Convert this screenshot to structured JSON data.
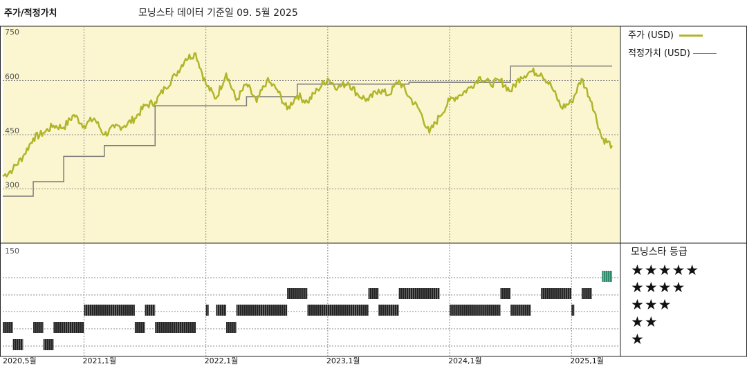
{
  "header": {
    "title": "주가/적정가치",
    "subtitle": "모닝스타 데이터 기준일 09. 5월 2025"
  },
  "legend": {
    "price_label": "주가 (USD)",
    "fair_label": "적정가치 (USD)"
  },
  "rating_panel": {
    "title": "모닝스타 등급",
    "stars": [
      "★★★★★",
      "★★★★",
      "★★★",
      "★★",
      "★"
    ]
  },
  "colors": {
    "price_line": "#b0b52a",
    "fair_line": "#7a7a7a",
    "plot_bg": "#fbf6cf",
    "rating_bar": "#222222",
    "rating_bar_5": "#2f8a6a"
  },
  "chart_data": {
    "type": "line",
    "x_start": "2020-05",
    "x_end": "2025-05",
    "x_ticks": [
      {
        "label": "2020,5월",
        "date": "2020-05"
      },
      {
        "label": "2021,1월",
        "date": "2021-01"
      },
      {
        "label": "2022,1월",
        "date": "2022-01"
      },
      {
        "label": "2023,1월",
        "date": "2023-01"
      },
      {
        "label": "2024,1월",
        "date": "2024-01"
      },
      {
        "label": "2025,1월",
        "date": "2025-01"
      }
    ],
    "y_ticks": [
      "750",
      "600",
      "450",
      "300",
      "150"
    ],
    "ylim": [
      150,
      750
    ],
    "grid": true,
    "series": [
      {
        "name": "주가 (USD)",
        "points": [
          [
            "2020-05",
            335
          ],
          [
            "2020-06",
            355
          ],
          [
            "2020-07",
            390
          ],
          [
            "2020-08",
            440
          ],
          [
            "2020-09",
            455
          ],
          [
            "2020-10",
            475
          ],
          [
            "2020-11",
            470
          ],
          [
            "2020-12",
            505
          ],
          [
            "2021-01",
            475
          ],
          [
            "2021-02",
            495
          ],
          [
            "2021-03",
            450
          ],
          [
            "2021-04",
            470
          ],
          [
            "2021-05",
            475
          ],
          [
            "2021-06",
            495
          ],
          [
            "2021-07",
            530
          ],
          [
            "2021-08",
            540
          ],
          [
            "2021-09",
            580
          ],
          [
            "2021-10",
            615
          ],
          [
            "2021-11",
            660
          ],
          [
            "2021-12",
            675
          ],
          [
            "2022-01",
            590
          ],
          [
            "2022-02",
            550
          ],
          [
            "2022-03",
            620
          ],
          [
            "2022-04",
            545
          ],
          [
            "2022-05",
            590
          ],
          [
            "2022-06",
            540
          ],
          [
            "2022-07",
            600
          ],
          [
            "2022-08",
            575
          ],
          [
            "2022-09",
            520
          ],
          [
            "2022-10",
            560
          ],
          [
            "2022-11",
            540
          ],
          [
            "2022-12",
            575
          ],
          [
            "2023-01",
            605
          ],
          [
            "2023-02",
            580
          ],
          [
            "2023-03",
            595
          ],
          [
            "2023-04",
            560
          ],
          [
            "2023-05",
            545
          ],
          [
            "2023-06",
            575
          ],
          [
            "2023-07",
            560
          ],
          [
            "2023-08",
            600
          ],
          [
            "2023-09",
            555
          ],
          [
            "2023-10",
            520
          ],
          [
            "2023-11",
            455
          ],
          [
            "2023-12",
            500
          ],
          [
            "2024-01",
            545
          ],
          [
            "2024-02",
            560
          ],
          [
            "2024-03",
            580
          ],
          [
            "2024-04",
            610
          ],
          [
            "2024-05",
            590
          ],
          [
            "2024-06",
            600
          ],
          [
            "2024-07",
            570
          ],
          [
            "2024-08",
            610
          ],
          [
            "2024-09",
            625
          ],
          [
            "2024-10",
            620
          ],
          [
            "2024-11",
            585
          ],
          [
            "2024-12",
            525
          ],
          [
            "2025-01",
            540
          ],
          [
            "2025-02",
            605
          ],
          [
            "2025-03",
            540
          ],
          [
            "2025-04",
            440
          ],
          [
            "2025-05",
            420
          ]
        ]
      },
      {
        "name": "적정가치 (USD)",
        "steps": [
          [
            "2020-05",
            280
          ],
          [
            "2020-08",
            320
          ],
          [
            "2020-11",
            390
          ],
          [
            "2021-03",
            420
          ],
          [
            "2021-08",
            530
          ],
          [
            "2021-12",
            530
          ],
          [
            "2022-05",
            555
          ],
          [
            "2022-10",
            590
          ],
          [
            "2023-09",
            595
          ],
          [
            "2024-06",
            595
          ],
          [
            "2024-07",
            640
          ],
          [
            "2025-05",
            640
          ]
        ]
      }
    ],
    "star_rating": {
      "levels": [
        5,
        4,
        3,
        2,
        1
      ],
      "periods": [
        {
          "stars": 2,
          "from": "2020-05",
          "to": "2020-06"
        },
        {
          "stars": 1,
          "from": "2020-06",
          "to": "2020-07"
        },
        {
          "stars": 2,
          "from": "2020-08",
          "to": "2020-09"
        },
        {
          "stars": 1,
          "from": "2020-09",
          "to": "2020-10"
        },
        {
          "stars": 2,
          "from": "2020-10",
          "to": "2021-01"
        },
        {
          "stars": 3,
          "from": "2021-01",
          "to": "2021-06"
        },
        {
          "stars": 2,
          "from": "2021-06",
          "to": "2021-07"
        },
        {
          "stars": 3,
          "from": "2021-07",
          "to": "2021-08"
        },
        {
          "stars": 2,
          "from": "2021-08",
          "to": "2021-12"
        },
        {
          "stars": 3,
          "from": "2022-01",
          "to": "2022-01"
        },
        {
          "stars": 3,
          "from": "2022-02",
          "to": "2022-03"
        },
        {
          "stars": 2,
          "from": "2022-03",
          "to": "2022-04"
        },
        {
          "stars": 3,
          "from": "2022-04",
          "to": "2022-09"
        },
        {
          "stars": 4,
          "from": "2022-09",
          "to": "2022-11"
        },
        {
          "stars": 3,
          "from": "2022-11",
          "to": "2023-05"
        },
        {
          "stars": 4,
          "from": "2023-05",
          "to": "2023-06"
        },
        {
          "stars": 3,
          "from": "2023-06",
          "to": "2023-08"
        },
        {
          "stars": 4,
          "from": "2023-08",
          "to": "2023-12"
        },
        {
          "stars": 3,
          "from": "2024-01",
          "to": "2024-06"
        },
        {
          "stars": 4,
          "from": "2024-06",
          "to": "2024-07"
        },
        {
          "stars": 3,
          "from": "2024-07",
          "to": "2024-09"
        },
        {
          "stars": 4,
          "from": "2024-10",
          "to": "2025-01"
        },
        {
          "stars": 3,
          "from": "2025-01",
          "to": "2025-01"
        },
        {
          "stars": 4,
          "from": "2025-02",
          "to": "2025-03"
        },
        {
          "stars": 5,
          "from": "2025-04",
          "to": "2025-05"
        }
      ]
    }
  }
}
